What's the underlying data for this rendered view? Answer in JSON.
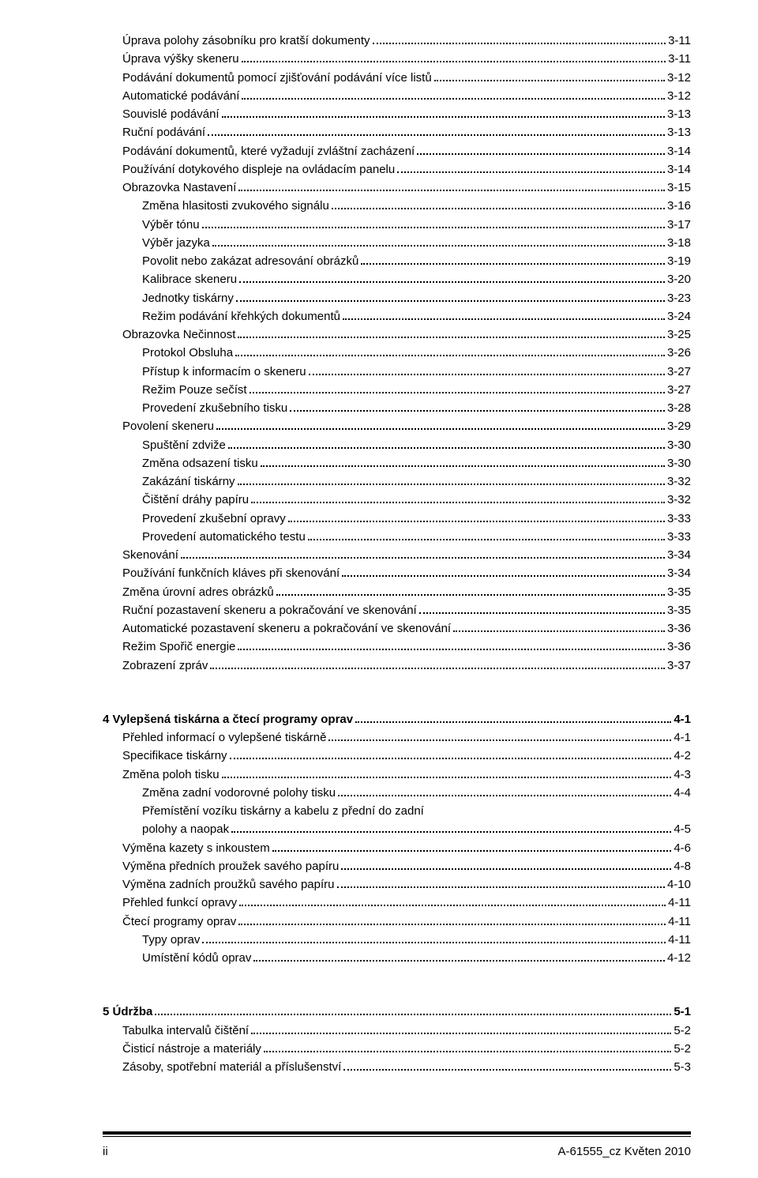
{
  "blocks": [
    {
      "entries": [
        {
          "indent": 1,
          "label": "Úprava polohy zásobníku pro kratší dokumenty",
          "page": "3-11",
          "bold": false
        },
        {
          "indent": 1,
          "label": "Úprava výšky skeneru",
          "page": "3-11",
          "bold": false
        },
        {
          "indent": 1,
          "label": "Podávání dokumentů pomocí zjišťování podávání více listů",
          "page": "3-12",
          "bold": false
        },
        {
          "indent": 1,
          "label": "Automatické podávání",
          "page": "3-12",
          "bold": false
        },
        {
          "indent": 1,
          "label": "Souvislé podávání",
          "page": "3-13",
          "bold": false
        },
        {
          "indent": 1,
          "label": "Ruční podávání",
          "page": "3-13",
          "bold": false
        },
        {
          "indent": 1,
          "label": "Podávání dokumentů, které vyžadují zvláštní zacházení",
          "page": "3-14",
          "bold": false
        },
        {
          "indent": 1,
          "label": "Používání dotykového displeje na ovládacím panelu",
          "page": "3-14",
          "bold": false
        },
        {
          "indent": 1,
          "label": "Obrazovka Nastavení",
          "page": "3-15",
          "bold": false
        },
        {
          "indent": 2,
          "label": "Změna hlasitosti zvukového signálu",
          "page": "3-16",
          "bold": false
        },
        {
          "indent": 2,
          "label": "Výběr tónu",
          "page": "3-17",
          "bold": false
        },
        {
          "indent": 2,
          "label": "Výběr jazyka",
          "page": "3-18",
          "bold": false
        },
        {
          "indent": 2,
          "label": "Povolit nebo zakázat adresování obrázků",
          "page": "3-19",
          "bold": false
        },
        {
          "indent": 2,
          "label": "Kalibrace skeneru",
          "page": "3-20",
          "bold": false
        },
        {
          "indent": 2,
          "label": "Jednotky tiskárny",
          "page": "3-23",
          "bold": false
        },
        {
          "indent": 2,
          "label": "Režim podávání křehkých dokumentů",
          "page": "3-24",
          "bold": false
        },
        {
          "indent": 1,
          "label": "Obrazovka Nečinnost",
          "page": "3-25",
          "bold": false
        },
        {
          "indent": 2,
          "label": "Protokol Obsluha",
          "page": "3-26",
          "bold": false
        },
        {
          "indent": 2,
          "label": "Přístup k informacím o skeneru",
          "page": "3-27",
          "bold": false
        },
        {
          "indent": 2,
          "label": "Režim Pouze sečíst",
          "page": "3-27",
          "bold": false
        },
        {
          "indent": 2,
          "label": "Provedení zkušebního tisku",
          "page": "3-28",
          "bold": false
        },
        {
          "indent": 1,
          "label": "Povolení skeneru",
          "page": "3-29",
          "bold": false
        },
        {
          "indent": 2,
          "label": "Spuštění zdviže",
          "page": "3-30",
          "bold": false
        },
        {
          "indent": 2,
          "label": "Změna odsazení tisku",
          "page": "3-30",
          "bold": false
        },
        {
          "indent": 2,
          "label": "Zakázání tiskárny",
          "page": "3-32",
          "bold": false
        },
        {
          "indent": 2,
          "label": "Čištění dráhy papíru",
          "page": "3-32",
          "bold": false
        },
        {
          "indent": 2,
          "label": "Provedení zkušební opravy",
          "page": "3-33",
          "bold": false
        },
        {
          "indent": 2,
          "label": "Provedení automatického testu",
          "page": "3-33",
          "bold": false
        },
        {
          "indent": 1,
          "label": "Skenování",
          "page": "3-34",
          "bold": false
        },
        {
          "indent": 1,
          "label": "Používání funkčních kláves při skenování",
          "page": "3-34",
          "bold": false
        },
        {
          "indent": 1,
          "label": "Změna úrovní adres obrázků",
          "page": "3-35",
          "bold": false
        },
        {
          "indent": 1,
          "label": "Ruční pozastavení skeneru a pokračování ve skenování",
          "page": "3-35",
          "bold": false
        },
        {
          "indent": 1,
          "label": "Automatické pozastavení skeneru a pokračování ve skenování",
          "page": "3-36",
          "bold": false
        },
        {
          "indent": 1,
          "label": "Režim Spořič energie",
          "page": "3-36",
          "bold": false
        },
        {
          "indent": 1,
          "label": "Zobrazení zpráv",
          "page": "3-37",
          "bold": false
        }
      ]
    },
    {
      "entries": [
        {
          "indent": 0,
          "label": "4   Vylepšená tiskárna a čtecí programy oprav",
          "page": "4-1",
          "bold": true
        },
        {
          "indent": 1,
          "label": "Přehled informací o vylepšené tiskárně",
          "page": "4-1",
          "bold": false
        },
        {
          "indent": 1,
          "label": "Specifikace tiskárny",
          "page": "4-2",
          "bold": false
        },
        {
          "indent": 1,
          "label": "Změna poloh tisku",
          "page": "4-3",
          "bold": false
        },
        {
          "indent": 2,
          "label": "Změna zadní vodorovné polohy tisku",
          "page": "4-4",
          "bold": false
        },
        {
          "indent": 2,
          "label": "Přemístění vozíku tiskárny a kabelu z přední do zadní",
          "page": "",
          "bold": false,
          "nopage": true
        },
        {
          "indent": 2,
          "label": "polohy a naopak",
          "page": "4-5",
          "bold": false
        },
        {
          "indent": 1,
          "label": "Výměna kazety s inkoustem",
          "page": "4-6",
          "bold": false
        },
        {
          "indent": 1,
          "label": "Výměna předních proužek savého papíru",
          "page": "4-8",
          "bold": false
        },
        {
          "indent": 1,
          "label": "Výměna zadních proužků savého papíru",
          "page": "4-10",
          "bold": false
        },
        {
          "indent": 1,
          "label": "Přehled funkcí opravy",
          "page": "4-11",
          "bold": false
        },
        {
          "indent": 1,
          "label": "Čtecí programy oprav",
          "page": "4-11",
          "bold": false
        },
        {
          "indent": 2,
          "label": "Typy oprav",
          "page": "4-11",
          "bold": false
        },
        {
          "indent": 2,
          "label": "Umístění kódů oprav",
          "page": "4-12",
          "bold": false
        }
      ]
    },
    {
      "entries": [
        {
          "indent": 0,
          "label": "5   Údržba",
          "page": "5-1",
          "bold": true
        },
        {
          "indent": 1,
          "label": "Tabulka intervalů čištění",
          "page": "5-2",
          "bold": false
        },
        {
          "indent": 1,
          "label": "Čisticí nástroje a materiály",
          "page": "5-2",
          "bold": false
        },
        {
          "indent": 1,
          "label": "Zásoby, spotřební materiál a příslušenství",
          "page": "5-3",
          "bold": false
        }
      ]
    }
  ],
  "footer": {
    "left": "ii",
    "right": "A-61555_cz  Květen 2010"
  }
}
